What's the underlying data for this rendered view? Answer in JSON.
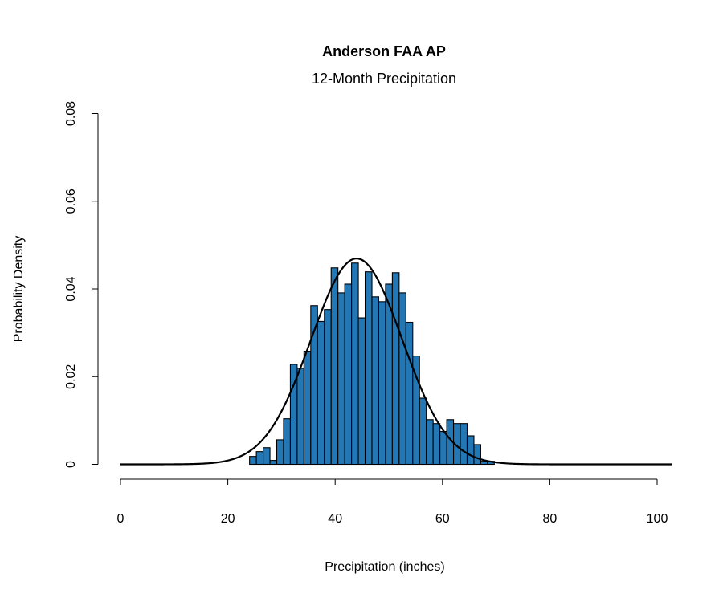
{
  "chart_data": {
    "type": "bar",
    "title": "Anderson FAA AP",
    "subtitle": "12-Month Precipitation",
    "xlabel": "Precipitation (inches)",
    "ylabel": "Probability Density",
    "xlim": [
      0,
      102.7
    ],
    "ylim": [
      0,
      0.08
    ],
    "xticks": [
      0,
      20,
      40,
      60,
      80,
      100
    ],
    "xtick_labels": [
      "0",
      "20",
      "40",
      "60",
      "80",
      "100"
    ],
    "yticks": [
      0,
      0.02,
      0.04,
      0.06,
      0.08
    ],
    "ytick_labels": [
      "0",
      "0.02",
      "0.04",
      "0.06",
      "0.08"
    ],
    "grid": false,
    "bar_color": "#2277b4",
    "histogram": {
      "bin_start": 24.05,
      "bin_width": 1.267,
      "densities": [
        0.0018,
        0.0029,
        0.0038,
        0.0009,
        0.0056,
        0.0104,
        0.0228,
        0.0219,
        0.0258,
        0.0362,
        0.0326,
        0.0353,
        0.0448,
        0.0391,
        0.0411,
        0.0459,
        0.0334,
        0.0439,
        0.0382,
        0.0371,
        0.0411,
        0.0437,
        0.0391,
        0.0324,
        0.0247,
        0.0151,
        0.0102,
        0.0093,
        0.0075,
        0.0102,
        0.0093,
        0.0093,
        0.0065,
        0.0045,
        0.0007,
        0.0007
      ]
    },
    "normal_curve": {
      "mean": 44.0,
      "sd": 8.5,
      "x_range": [
        0,
        102.7
      ],
      "color": "#000000"
    }
  }
}
